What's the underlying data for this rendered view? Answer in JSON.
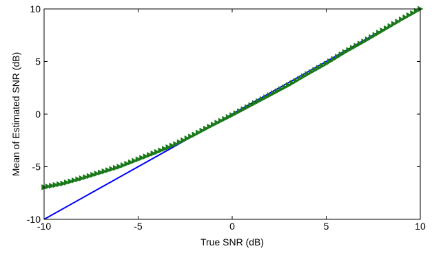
{
  "chart_data": {
    "type": "line",
    "title": "",
    "xlabel": "True SNR (dB)",
    "ylabel": "Mean of Estimated SNR (dB)",
    "xlim": [
      -10,
      10
    ],
    "ylim": [
      -10,
      10
    ],
    "xticks": [
      -10,
      -5,
      0,
      5,
      10
    ],
    "yticks": [
      -10,
      -5,
      0,
      5,
      10
    ],
    "grid": false,
    "legend": "none",
    "series": [
      {
        "color": "#0000ff",
        "marker": "none",
        "x": [
          -10,
          10
        ],
        "y": [
          -10,
          10
        ]
      },
      {
        "color": "#1a7a1a",
        "marker": "triangle-right",
        "x": [
          -10,
          -9,
          -8,
          -7,
          -6,
          -5,
          -4,
          -3,
          -2,
          -1,
          0,
          1,
          2,
          3,
          4,
          5,
          6,
          7,
          8,
          9,
          10
        ],
        "y": [
          -6.95,
          -6.6,
          -6.1,
          -5.55,
          -5.0,
          -4.3,
          -3.6,
          -2.85,
          -1.95,
          -1.0,
          -0.1,
          0.85,
          1.8,
          2.75,
          3.8,
          4.8,
          5.9,
          6.9,
          7.95,
          9.0,
          10.0
        ]
      }
    ]
  }
}
